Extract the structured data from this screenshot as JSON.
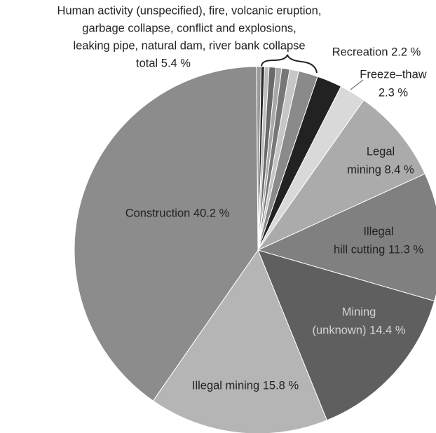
{
  "chart_data": {
    "type": "pie",
    "annotation": [
      "Human activity (unspecified), fire, volcanic eruption,",
      "garbage collapse, conflict and explosions,",
      "leaking pipe, natural dam, river bank collapse",
      "total 5.4 %"
    ],
    "labels": [
      null,
      null,
      null,
      null,
      null,
      null,
      null,
      null,
      [
        "Recreation 2.2 %"
      ],
      [
        "Freeze–thaw",
        "2.3 %"
      ],
      [
        "Legal",
        "mining 8.4 %"
      ],
      [
        "Illegal",
        "hill cutting 11.3 %"
      ],
      [
        "Mining",
        "(unknown) 14.4 %"
      ],
      [
        "Illegal mining 15.8 %"
      ],
      [
        "Construction 40.2 %"
      ]
    ],
    "values": [
      0.4,
      0.3,
      0.4,
      0.6,
      0.5,
      0.7,
      0.8,
      1.7,
      2.2,
      2.3,
      8.4,
      11.3,
      14.4,
      15.8,
      40.2
    ],
    "colors": [
      "#9a9a9a",
      "#2a2a2a",
      "#bdbdbd",
      "#6a6a6a",
      "#a8a8a8",
      "#777777",
      "#c6c6c6",
      "#8a8a8a",
      "#222222",
      "#d9d9d9",
      "#ababab",
      "#808080",
      "#5e5f5e",
      "#b5b5b5",
      "#8c8c8c"
    ],
    "label_colors": [
      null,
      null,
      null,
      null,
      null,
      null,
      null,
      null,
      "#222222",
      "#222222",
      "#222222",
      "#222222",
      "#d4d4d4",
      "#222222",
      "#222222"
    ]
  }
}
